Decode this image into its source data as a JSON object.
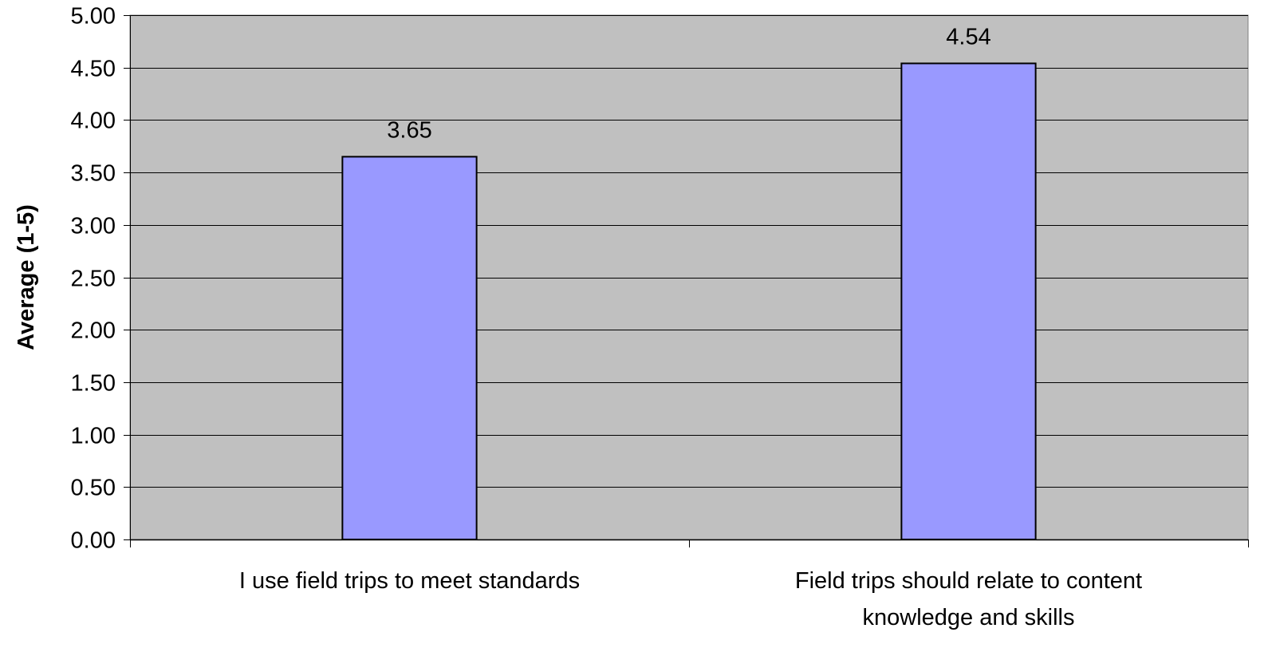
{
  "chart_data": {
    "type": "bar",
    "title": "",
    "xlabel": "",
    "ylabel": "Average (1-5)",
    "categories": [
      [
        "I use field trips to meet standards"
      ],
      [
        "Field trips should relate to content",
        "knowledge and skills"
      ]
    ],
    "values": [
      3.65,
      4.54
    ],
    "data_labels": [
      "3.65",
      "4.54"
    ],
    "ylim": [
      0,
      5
    ],
    "yticks": [
      "0.00",
      "0.50",
      "1.00",
      "1.50",
      "2.00",
      "2.50",
      "3.00",
      "3.50",
      "4.00",
      "4.50",
      "5.00"
    ],
    "grid": true,
    "legend": "none",
    "colors": {
      "plot_background": "#c0c0c0",
      "bar_fill": "#9999ff",
      "bar_stroke": "#000000",
      "gridline": "#000000"
    }
  }
}
